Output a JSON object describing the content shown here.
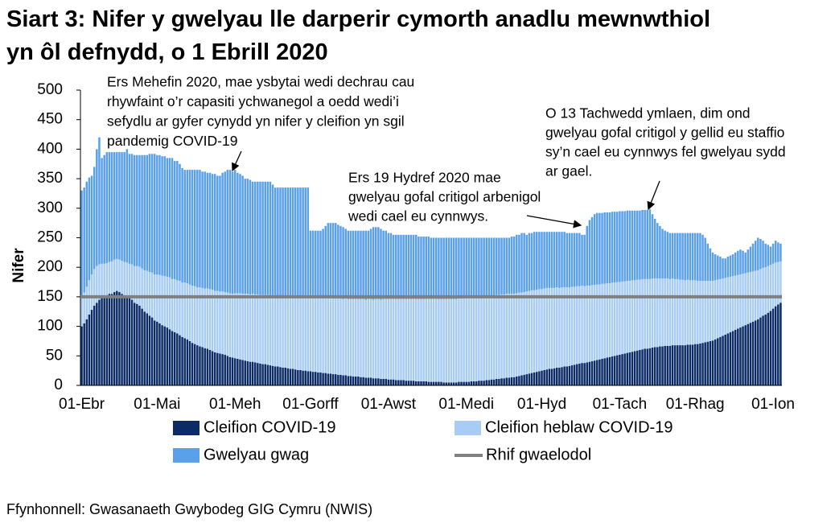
{
  "chart_data": {
    "type": "stacked_bar",
    "title": "Siart 3: Nifer y gwelyau lle darperir cymorth anadlu mewnwthiol yn ôl defnydd, o 1 Ebrill 2020",
    "ylabel": "Nifer",
    "source": "Ffynhonnell: Gwasanaeth Gwybodeg GIG Cymru (NWIS)",
    "ylim": [
      0,
      500
    ],
    "yticks": [
      0,
      50,
      100,
      150,
      200,
      250,
      300,
      350,
      400,
      450,
      500
    ],
    "categories": [
      "01-Ebr",
      null,
      null,
      null,
      null,
      null,
      null,
      null,
      null,
      null,
      null,
      null,
      null,
      null,
      null,
      null,
      null,
      null,
      null,
      null,
      null,
      null,
      null,
      null,
      null,
      null,
      null,
      null,
      null,
      null,
      "01-Mai",
      null,
      null,
      null,
      null,
      null,
      null,
      null,
      null,
      null,
      null,
      null,
      null,
      null,
      null,
      null,
      null,
      null,
      null,
      null,
      null,
      null,
      null,
      null,
      null,
      null,
      null,
      null,
      null,
      null,
      null,
      "01-Meh",
      null,
      null,
      null,
      null,
      null,
      null,
      null,
      null,
      null,
      null,
      null,
      null,
      null,
      null,
      null,
      null,
      null,
      null,
      null,
      null,
      null,
      null,
      null,
      null,
      null,
      null,
      null,
      null,
      null,
      "01-Gorff",
      null,
      null,
      null,
      null,
      null,
      null,
      null,
      null,
      null,
      null,
      null,
      null,
      null,
      null,
      null,
      null,
      null,
      null,
      null,
      null,
      null,
      null,
      null,
      null,
      null,
      null,
      null,
      null,
      null,
      null,
      "01-Awst",
      null,
      null,
      null,
      null,
      null,
      null,
      null,
      null,
      null,
      null,
      null,
      null,
      null,
      null,
      null,
      null,
      null,
      null,
      null,
      null,
      null,
      null,
      null,
      null,
      null,
      null,
      null,
      null,
      null,
      null,
      "01-Medi",
      null,
      null,
      null,
      null,
      null,
      null,
      null,
      null,
      null,
      null,
      null,
      null,
      null,
      null,
      null,
      null,
      null,
      null,
      null,
      null,
      null,
      null,
      null,
      null,
      null,
      null,
      null,
      null,
      null,
      "01-Hyd",
      null,
      null,
      null,
      null,
      null,
      null,
      null,
      null,
      null,
      null,
      null,
      null,
      null,
      null,
      null,
      null,
      null,
      null,
      null,
      null,
      null,
      null,
      null,
      null,
      null,
      null,
      null,
      null,
      null,
      null,
      "01-Tach",
      null,
      null,
      null,
      null,
      null,
      null,
      null,
      null,
      null,
      null,
      null,
      null,
      null,
      null,
      null,
      null,
      null,
      null,
      null,
      null,
      null,
      null,
      null,
      null,
      null,
      null,
      null,
      null,
      null,
      "01-Rhag",
      null,
      null,
      null,
      null,
      null,
      null,
      null,
      null,
      null,
      null,
      null,
      null,
      null,
      null,
      null,
      null,
      null,
      null,
      null,
      null,
      null,
      null,
      null,
      null,
      null,
      null,
      null,
      null,
      null,
      null,
      "01-Ion",
      null,
      null,
      null
    ],
    "series": [
      {
        "name": "Cleifion COVID-19",
        "color": "#0b2b66",
        "values": [
          100,
          105,
          112,
          120,
          128,
          135,
          140,
          145,
          148,
          150,
          152,
          155,
          155,
          158,
          160,
          158,
          155,
          152,
          150,
          148,
          145,
          140,
          138,
          135,
          130,
          125,
          122,
          118,
          115,
          110,
          108,
          105,
          102,
          100,
          98,
          95,
          92,
          90,
          88,
          85,
          82,
          80,
          78,
          75,
          72,
          70,
          68,
          66,
          65,
          63,
          62,
          60,
          58,
          56,
          55,
          54,
          53,
          52,
          50,
          48,
          47,
          46,
          45,
          44,
          43,
          42,
          41,
          40,
          40,
          39,
          38,
          37,
          36,
          36,
          35,
          34,
          33,
          32,
          32,
          31,
          30,
          30,
          29,
          28,
          28,
          27,
          26,
          26,
          25,
          25,
          24,
          24,
          23,
          23,
          22,
          22,
          21,
          21,
          20,
          20,
          19,
          19,
          18,
          18,
          17,
          17,
          16,
          16,
          15,
          15,
          15,
          14,
          14,
          13,
          13,
          13,
          12,
          12,
          12,
          11,
          11,
          11,
          10,
          10,
          10,
          9,
          9,
          9,
          9,
          8,
          8,
          8,
          8,
          7,
          7,
          7,
          7,
          7,
          6,
          6,
          6,
          6,
          6,
          6,
          5,
          5,
          5,
          5,
          5,
          5,
          6,
          6,
          6,
          6,
          6,
          7,
          7,
          7,
          8,
          8,
          8,
          9,
          9,
          10,
          10,
          11,
          11,
          12,
          12,
          13,
          13,
          14,
          14,
          15,
          16,
          17,
          18,
          19,
          20,
          21,
          22,
          23,
          24,
          25,
          26,
          27,
          28,
          28,
          29,
          30,
          30,
          31,
          32,
          32,
          33,
          34,
          35,
          36,
          37,
          38,
          38,
          39,
          40,
          41,
          42,
          43,
          44,
          45,
          46,
          47,
          48,
          49,
          50,
          51,
          52,
          53,
          54,
          55,
          56,
          57,
          58,
          59,
          60,
          61,
          62,
          62,
          63,
          64,
          65,
          65,
          66,
          66,
          67,
          67,
          67,
          68,
          68,
          68,
          68,
          68,
          68,
          69,
          69,
          69,
          70,
          70,
          71,
          72,
          73,
          74,
          75,
          76,
          78,
          80,
          82,
          84,
          86,
          88,
          90,
          92,
          94,
          96,
          98,
          100,
          102,
          104,
          106,
          108,
          110,
          112,
          115,
          118,
          120,
          123,
          126,
          130,
          134,
          137,
          140
        ]
      },
      {
        "name": "Cleifion heblaw COVID-19",
        "color": "#a9ccf5",
        "values": [
          50,
          52,
          55,
          58,
          60,
          62,
          62,
          60,
          58,
          56,
          55,
          54,
          55,
          55,
          54,
          55,
          56,
          57,
          58,
          58,
          60,
          62,
          64,
          66,
          68,
          70,
          72,
          74,
          76,
          78,
          80,
          82,
          84,
          85,
          86,
          88,
          88,
          90,
          90,
          92,
          92,
          94,
          95,
          96,
          97,
          98,
          98,
          100,
          100,
          101,
          102,
          103,
          104,
          104,
          105,
          105,
          106,
          106,
          107,
          108,
          108,
          110,
          111,
          112,
          112,
          113,
          114,
          114,
          115,
          115,
          116,
          116,
          117,
          117,
          118,
          118,
          118,
          119,
          119,
          120,
          120,
          120,
          121,
          121,
          122,
          122,
          122,
          123,
          123,
          124,
          124,
          125,
          125,
          126,
          126,
          126,
          127,
          127,
          127,
          128,
          128,
          128,
          129,
          129,
          129,
          130,
          130,
          130,
          131,
          131,
          131,
          132,
          132,
          132,
          133,
          133,
          133,
          134,
          134,
          134,
          135,
          135,
          136,
          136,
          136,
          137,
          137,
          137,
          137,
          138,
          138,
          138,
          138,
          139,
          139,
          139,
          139,
          139,
          140,
          140,
          140,
          140,
          140,
          140,
          141,
          141,
          141,
          141,
          141,
          141,
          141,
          141,
          141,
          142,
          142,
          142,
          142,
          142,
          142,
          142,
          142,
          142,
          142,
          142,
          142,
          142,
          142,
          142,
          142,
          142,
          142,
          141,
          141,
          141,
          141,
          140,
          140,
          140,
          140,
          140,
          139,
          139,
          139,
          138,
          138,
          138,
          137,
          137,
          136,
          136,
          135,
          135,
          134,
          134,
          133,
          133,
          132,
          132,
          131,
          131,
          130,
          130,
          129,
          129,
          128,
          128,
          127,
          127,
          126,
          126,
          125,
          125,
          124,
          124,
          123,
          123,
          122,
          122,
          121,
          121,
          120,
          120,
          119,
          119,
          118,
          118,
          117,
          117,
          116,
          116,
          115,
          115,
          114,
          114,
          113,
          113,
          112,
          112,
          111,
          111,
          110,
          110,
          109,
          109,
          108,
          107,
          106,
          105,
          104,
          103,
          102,
          101,
          100,
          99,
          98,
          97,
          96,
          95,
          94,
          93,
          92,
          91,
          90,
          89,
          88,
          87,
          86,
          85,
          84,
          83,
          82,
          81,
          80,
          79,
          78,
          76,
          74,
          72,
          70
        ]
      },
      {
        "name": "Gwelyau gwag",
        "color": "#5aa0ea",
        "values": [
          180,
          178,
          178,
          174,
          167,
          173,
          198,
          215,
          179,
          184,
          188,
          186,
          185,
          182,
          181,
          182,
          184,
          186,
          192,
          186,
          187,
          188,
          188,
          189,
          192,
          195,
          196,
          200,
          201,
          204,
          202,
          203,
          202,
          203,
          201,
          202,
          205,
          200,
          202,
          198,
          194,
          191,
          192,
          194,
          196,
          197,
          199,
          199,
          197,
          198,
          196,
          197,
          196,
          198,
          195,
          196,
          201,
          204,
          208,
          209,
          207,
          209,
          204,
          202,
          200,
          195,
          195,
          194,
          190,
          191,
          191,
          192,
          192,
          192,
          192,
          193,
          189,
          184,
          184,
          184,
          185,
          185,
          185,
          186,
          185,
          186,
          187,
          186,
          187,
          186,
          187,
          113,
          114,
          113,
          114,
          114,
          117,
          122,
          128,
          127,
          128,
          128,
          125,
          123,
          122,
          118,
          116,
          116,
          116,
          116,
          116,
          116,
          116,
          117,
          116,
          119,
          123,
          122,
          122,
          120,
          116,
          116,
          112,
          112,
          109,
          109,
          109,
          109,
          109,
          109,
          109,
          109,
          109,
          109,
          106,
          106,
          106,
          106,
          106,
          104,
          104,
          104,
          104,
          104,
          104,
          104,
          104,
          104,
          104,
          104,
          103,
          103,
          103,
          102,
          102,
          101,
          101,
          101,
          100,
          100,
          100,
          99,
          99,
          98,
          98,
          97,
          97,
          96,
          96,
          95,
          95,
          97,
          97,
          99,
          98,
          101,
          100,
          96,
          98,
          97,
          99,
          98,
          97,
          97,
          96,
          95,
          95,
          95,
          95,
          94,
          95,
          94,
          94,
          92,
          92,
          91,
          91,
          90,
          90,
          86,
          87,
          101,
          111,
          115,
          120,
          121,
          121,
          120,
          121,
          120,
          120,
          120,
          120,
          119,
          120,
          119,
          119,
          119,
          119,
          118,
          118,
          117,
          117,
          117,
          117,
          117,
          118,
          109,
          101,
          94,
          89,
          84,
          81,
          79,
          78,
          77,
          78,
          78,
          79,
          79,
          80,
          79,
          80,
          80,
          80,
          81,
          81,
          78,
          73,
          63,
          55,
          48,
          44,
          41,
          38,
          34,
          33,
          35,
          36,
          37,
          39,
          41,
          42,
          39,
          35,
          39,
          43,
          47,
          51,
          55,
          51,
          46,
          40,
          36,
          31,
          34,
          37,
          33,
          30
        ]
      }
    ],
    "reference_line": {
      "name": "Rhif gwaelodol",
      "color": "#808080",
      "value": 150
    },
    "annotations": [
      {
        "lines": [
          "Ers Mehefin 2020, mae ysbytai wedi dechrau cau",
          "rhywfaint o’r capasiti ychwanegol a oedd wedi’i",
          "sefydlu ar gyfer cynydd yn nifer y cleifion yn sgil",
          "pandemig COVID-19"
        ]
      },
      {
        "lines": [
          "Ers 19 Hydref 2020 mae",
          "gwelyau gofal critigol arbenigol",
          "wedi cael eu cynnwys."
        ]
      },
      {
        "lines": [
          "O 13 Tachwedd ymlaen, dim ond",
          "gwelyau gofal critigol y gellid eu staffio",
          "sy’n cael eu cynnwys fel gwelyau sydd",
          "ar gael."
        ]
      }
    ]
  }
}
